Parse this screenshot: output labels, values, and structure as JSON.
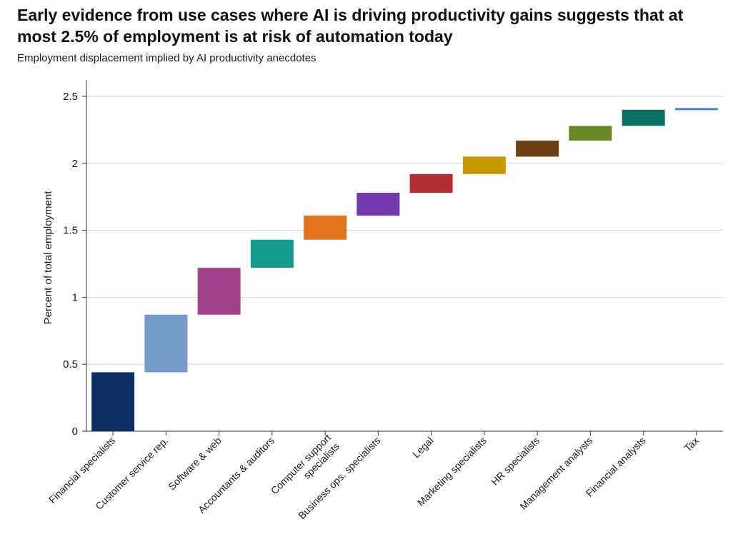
{
  "header": {
    "title": "Early evidence from use cases where AI is driving productivity gains suggests that at most 2.5% of employment is at risk of automation today",
    "subtitle": "Employment displacement implied by AI productivity anecdotes"
  },
  "chart_data": {
    "type": "bar",
    "subtype": "waterfall",
    "title": "Early evidence from use cases where AI is driving productivity gains suggests that at most 2.5% of employment is at risk of automation today",
    "subtitle": "Employment displacement implied by AI productivity anecdotes",
    "xlabel": "",
    "ylabel": "Percent of total employment",
    "ylim": [
      0,
      2.6
    ],
    "yticks": [
      0,
      0.5,
      1,
      1.5,
      2,
      2.5
    ],
    "ytick_labels": [
      "0",
      "0.5",
      "1",
      "1.5",
      "2",
      "2.5"
    ],
    "grid": true,
    "legend": "none",
    "categories": [
      "Financial specialists",
      "Customer service rep.",
      "Software & web",
      "Accountants & auditors",
      "Computer support specialists",
      "Business ops. specialists",
      "Legal",
      "Marketing specialists",
      "HR specialists",
      "Management analysts",
      "Financial analysts",
      "Tax"
    ],
    "values": [
      0.44,
      0.43,
      0.35,
      0.21,
      0.18,
      0.17,
      0.14,
      0.13,
      0.12,
      0.11,
      0.12,
      0.01
    ],
    "starts": [
      0,
      0.44,
      0.87,
      1.22,
      1.43,
      1.61,
      1.78,
      1.92,
      2.05,
      2.17,
      2.28,
      2.4
    ],
    "ends": [
      0.44,
      0.87,
      1.22,
      1.43,
      1.61,
      1.78,
      1.92,
      2.05,
      2.17,
      2.28,
      2.4,
      2.41
    ],
    "colors": [
      "#0b2e63",
      "#749cc9",
      "#a3428a",
      "#159a8d",
      "#e4741c",
      "#7437ad",
      "#b12e33",
      "#c79a04",
      "#6e3f12",
      "#6a8727",
      "#0b6f63",
      "#4a7fd3"
    ]
  }
}
